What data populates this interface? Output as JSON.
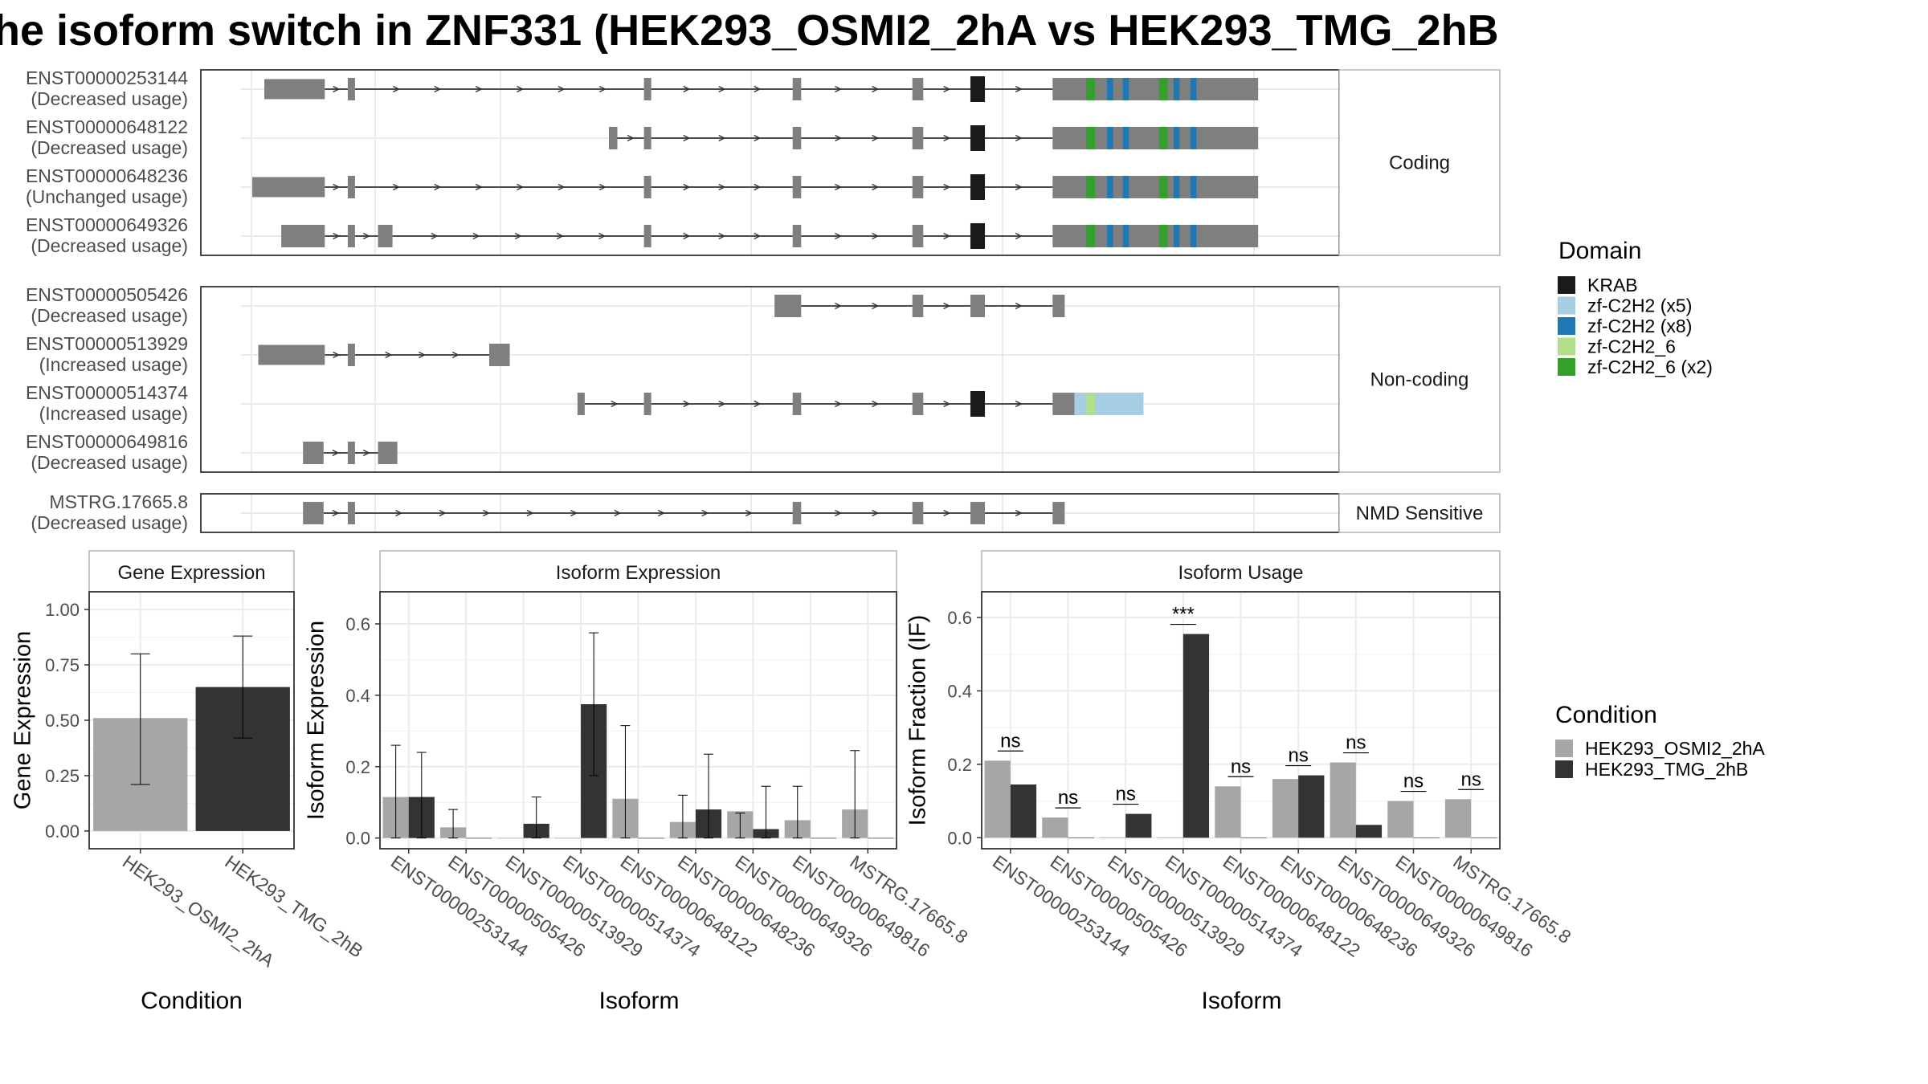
{
  "title": "he isoform switch in ZNF331 (HEK293_OSMI2_2hA vs HEK293_TMG_2hB",
  "colors": {
    "exon": "#7f7f7f",
    "intron": "#333333",
    "grid": "#ebebeb",
    "panel_border": "#333333",
    "strip_border": "#b3b3b3",
    "cond_A": "#a6a6a6",
    "cond_B": "#333333",
    "KRAB": "#1a1a1a",
    "zf-C2H2 (x5)": "#a6cee3",
    "zf-C2H2 (x8)": "#1f78b4",
    "zf-C2H2_6": "#b2df8a",
    "zf-C2H2_6 (x2)": "#33a02c"
  },
  "structure": {
    "groups": [
      {
        "label": "Coding",
        "transcripts": [
          {
            "id": "ENST00000253144",
            "usage": "(Decreased usage)",
            "exons": [
              [
                10,
                60
              ],
              [
                79,
                85
              ],
              [
                324,
                330
              ],
              [
                447,
                454
              ],
              [
                546,
                555
              ],
              [
                594,
                606
              ],
              [
                662,
                792
              ],
              [
                792,
                832
              ]
            ],
            "domains": [
              [
                "KRAB",
                594,
                606
              ],
              [
                "zf-C2H2 (x8)",
                690,
                697
              ],
              [
                "zf-C2H2_6 (x2)",
                690,
                697
              ],
              [
                "zf-C2H2 (x8)",
                707,
                712
              ],
              [
                "zf-C2H2 (x8)",
                720,
                725
              ],
              [
                "zf-C2H2_6 (x2)",
                750,
                757
              ],
              [
                "zf-C2H2 (x8)",
                762,
                767
              ],
              [
                "zf-C2H2 (x8)",
                776,
                781
              ]
            ]
          },
          {
            "id": "ENST00000648122",
            "usage": "(Decreased usage)",
            "exons": [
              [
                295,
                302
              ],
              [
                324,
                330
              ],
              [
                447,
                454
              ],
              [
                546,
                555
              ],
              [
                594,
                606
              ],
              [
                662,
                792
              ],
              [
                792,
                832
              ]
            ],
            "domains": [
              [
                "KRAB",
                594,
                606
              ],
              [
                "zf-C2H2 (x8)",
                690,
                697
              ],
              [
                "zf-C2H2_6 (x2)",
                690,
                697
              ],
              [
                "zf-C2H2 (x8)",
                707,
                712
              ],
              [
                "zf-C2H2 (x8)",
                720,
                725
              ],
              [
                "zf-C2H2_6 (x2)",
                750,
                757
              ],
              [
                "zf-C2H2 (x8)",
                762,
                767
              ],
              [
                "zf-C2H2 (x8)",
                776,
                781
              ]
            ]
          },
          {
            "id": "ENST00000648236",
            "usage": "(Unchanged usage)",
            "exons": [
              [
                0,
                60
              ],
              [
                79,
                85
              ],
              [
                324,
                330
              ],
              [
                447,
                454
              ],
              [
                546,
                555
              ],
              [
                594,
                606
              ],
              [
                662,
                792
              ],
              [
                792,
                832
              ]
            ],
            "domains": [
              [
                "KRAB",
                594,
                606
              ],
              [
                "zf-C2H2 (x8)",
                690,
                697
              ],
              [
                "zf-C2H2_6 (x2)",
                690,
                697
              ],
              [
                "zf-C2H2 (x8)",
                707,
                712
              ],
              [
                "zf-C2H2 (x8)",
                720,
                725
              ],
              [
                "zf-C2H2_6 (x2)",
                750,
                757
              ],
              [
                "zf-C2H2 (x8)",
                762,
                767
              ],
              [
                "zf-C2H2 (x8)",
                776,
                781
              ]
            ]
          },
          {
            "id": "ENST00000649326",
            "usage": "(Decreased usage)",
            "exons": [
              [
                24,
                60
              ],
              [
                79,
                85
              ],
              [
                104,
                116
              ],
              [
                324,
                330
              ],
              [
                447,
                454
              ],
              [
                546,
                555
              ],
              [
                594,
                606
              ],
              [
                662,
                792
              ],
              [
                792,
                832
              ]
            ],
            "domains": [
              [
                "KRAB",
                594,
                606
              ],
              [
                "zf-C2H2 (x8)",
                690,
                697
              ],
              [
                "zf-C2H2_6 (x2)",
                690,
                697
              ],
              [
                "zf-C2H2 (x8)",
                707,
                712
              ],
              [
                "zf-C2H2 (x8)",
                720,
                725
              ],
              [
                "zf-C2H2_6 (x2)",
                750,
                757
              ],
              [
                "zf-C2H2 (x8)",
                762,
                767
              ],
              [
                "zf-C2H2 (x8)",
                776,
                781
              ]
            ]
          }
        ]
      },
      {
        "label": "Non-coding",
        "transcripts": [
          {
            "id": "ENST00000505426",
            "usage": "(Decreased usage)",
            "exons": [
              [
                432,
                454
              ],
              [
                546,
                555
              ],
              [
                594,
                606
              ],
              [
                662,
                672
              ]
            ],
            "domains": []
          },
          {
            "id": "ENST00000513929",
            "usage": "(Increased usage)",
            "exons": [
              [
                5,
                60
              ],
              [
                79,
                85
              ],
              [
                196,
                213
              ]
            ],
            "domains": []
          },
          {
            "id": "ENST00000514374",
            "usage": "(Increased usage)",
            "exons": [
              [
                269,
                275
              ],
              [
                324,
                330
              ],
              [
                447,
                454
              ],
              [
                546,
                555
              ],
              [
                594,
                606
              ],
              [
                662,
                737
              ]
            ],
            "domains": [
              [
                "KRAB",
                594,
                606
              ],
              [
                "zf-C2H2 (x5)",
                680,
                737
              ],
              [
                "zf-C2H2_6",
                690,
                697
              ]
            ]
          },
          {
            "id": "ENST00000649816",
            "usage": "(Decreased usage)",
            "exons": [
              [
                42,
                59
              ],
              [
                79,
                85
              ],
              [
                104,
                120
              ]
            ],
            "domains": []
          }
        ]
      },
      {
        "label": "NMD Sensitive",
        "transcripts": [
          {
            "id": "MSTRG.17665.8",
            "usage": "(Decreased usage)",
            "exons": [
              [
                42,
                59
              ],
              [
                79,
                85
              ],
              [
                447,
                454
              ],
              [
                546,
                555
              ],
              [
                594,
                606
              ],
              [
                662,
                672
              ]
            ],
            "domains": []
          }
        ]
      }
    ]
  },
  "legend_domain": {
    "title": "Domain",
    "items": [
      "KRAB",
      "zf-C2H2 (x5)",
      "zf-C2H2 (x8)",
      "zf-C2H2_6",
      "zf-C2H2_6 (x2)"
    ]
  },
  "legend_condition": {
    "title": "Condition",
    "items": [
      "HEK293_OSMI2_2hA",
      "HEK293_TMG_2hB"
    ]
  },
  "chart_data": [
    {
      "type": "bar",
      "title": "Gene Expression",
      "xlabel": "Condition",
      "ylabel": "Gene Expression",
      "categories": [
        "HEK293_OSMI2_2hA",
        "HEK293_TMG_2hB"
      ],
      "values": [
        0.51,
        0.65
      ],
      "err_low": [
        0.21,
        0.42
      ],
      "err_high": [
        0.8,
        0.88
      ],
      "ylim": [
        -0.08,
        1.08
      ],
      "ticks": [
        0.0,
        0.25,
        0.5,
        0.75,
        1.0
      ],
      "tick_labels": [
        "0.00",
        "0.25",
        "0.50",
        "0.75",
        "1.00"
      ]
    },
    {
      "type": "bar",
      "title": "Isoform Expression",
      "xlabel": "Isoform",
      "ylabel": "Isoform Expression",
      "categories": [
        "ENST00000253144",
        "ENST00000505426",
        "ENST00000513929",
        "ENST00000514374",
        "ENST00000648122",
        "ENST00000648236",
        "ENST00000649326",
        "ENST00000649816",
        "MSTRG.17665.8"
      ],
      "series": [
        {
          "name": "HEK293_OSMI2_2hA",
          "values": [
            0.115,
            0.03,
            0.0,
            0.0,
            0.11,
            0.045,
            0.075,
            0.05,
            0.08
          ],
          "err_low": [
            0.0,
            0.0,
            0.0,
            0.0,
            0.0,
            0.0,
            0.0,
            0.0,
            0.0
          ],
          "err_high": [
            0.26,
            0.08,
            0.0,
            0.0,
            0.315,
            0.12,
            0.07,
            0.145,
            0.245
          ]
        },
        {
          "name": "HEK293_TMG_2hB",
          "values": [
            0.115,
            0.0,
            0.04,
            0.375,
            0.0,
            0.08,
            0.025,
            0.0,
            0.0
          ],
          "err_low": [
            0.0,
            0.0,
            0.0,
            0.175,
            0.0,
            0.0,
            0.0,
            0.0,
            0.0
          ],
          "err_high": [
            0.24,
            0.0,
            0.115,
            0.575,
            0.0,
            0.235,
            0.145,
            0.0,
            0.0
          ]
        }
      ],
      "ylim": [
        -0.03,
        0.69
      ],
      "ticks": [
        0.0,
        0.2,
        0.4,
        0.6
      ],
      "tick_labels": [
        "0.0",
        "0.2",
        "0.4",
        "0.6"
      ]
    },
    {
      "type": "bar",
      "title": "Isoform Usage",
      "xlabel": "Isoform",
      "ylabel": "Isoform Fraction (IF)",
      "categories": [
        "ENST00000253144",
        "ENST00000505426",
        "ENST00000513929",
        "ENST00000514374",
        "ENST00000648122",
        "ENST00000648236",
        "ENST00000649326",
        "ENST00000649816",
        "MSTRG.17665.8"
      ],
      "series": [
        {
          "name": "HEK293_OSMI2_2hA",
          "values": [
            0.21,
            0.055,
            0.0,
            0.0,
            0.14,
            0.16,
            0.205,
            0.1,
            0.105
          ]
        },
        {
          "name": "HEK293_TMG_2hB",
          "values": [
            0.145,
            0.0,
            0.065,
            0.555,
            0.0,
            0.17,
            0.035,
            0.0,
            0.0
          ]
        }
      ],
      "annotations": [
        "ns",
        "ns",
        "ns",
        "***",
        "ns",
        "ns",
        "ns",
        "ns",
        "ns"
      ],
      "ylim": [
        -0.03,
        0.67
      ],
      "ticks": [
        0.0,
        0.2,
        0.4,
        0.6
      ],
      "tick_labels": [
        "0.0",
        "0.2",
        "0.4",
        "0.6"
      ]
    }
  ]
}
